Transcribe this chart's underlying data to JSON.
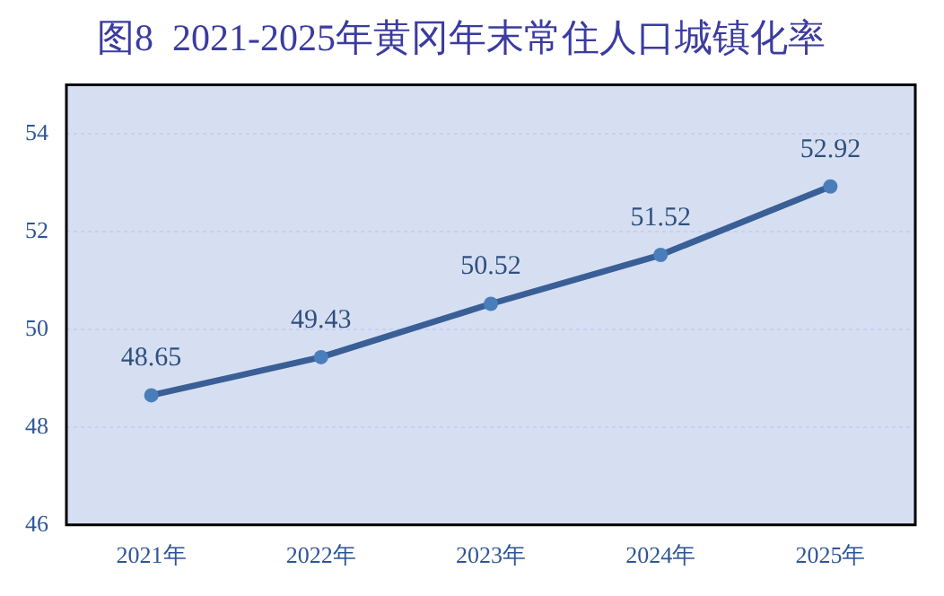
{
  "chart_data": {
    "type": "line",
    "title": "图8  2021-2025年黄冈年末常住人口城镇化率",
    "categories": [
      "2021年",
      "2022年",
      "2023年",
      "2024年",
      "2025年"
    ],
    "series": [
      {
        "color": "#3a5f96",
        "values": [
          48.65,
          49.43,
          50.52,
          51.52,
          52.92
        ]
      }
    ],
    "ylim": [
      46,
      55
    ],
    "yticks": [
      46,
      48,
      50,
      52,
      54
    ],
    "grid": "y",
    "marker": "circle",
    "line_style": "solid",
    "data_labels": true,
    "legend": false
  }
}
